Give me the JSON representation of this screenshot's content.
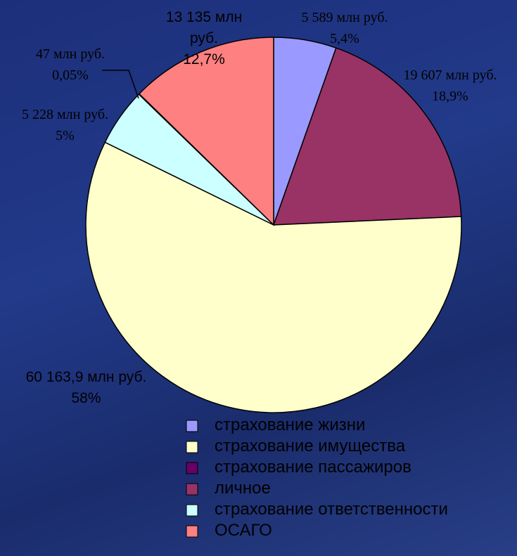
{
  "chart_data": {
    "type": "pie",
    "categories": [
      "страхование жизни",
      "личное",
      "страхование имущества",
      "страхование ответственности",
      "страхование пассажиров",
      "ОСАГО"
    ],
    "values": [
      5.4,
      18.9,
      58,
      5,
      0.05,
      12.7
    ],
    "value_labels": [
      "5,4%",
      "18,9%",
      "58%",
      "5%",
      "0,05%",
      "12,7%"
    ],
    "amount_labels": [
      "5 589 млн руб.",
      "19 607 млн руб.",
      "60 163,9 млн руб.",
      "5 228 млн руб.",
      "47 млн руб.",
      "13 135 млн руб."
    ],
    "colors": [
      "#9999ff",
      "#993366",
      "#ffffcc",
      "#ccffff",
      "#660066",
      "#ff8080"
    ],
    "legend_order": [
      0,
      2,
      4,
      1,
      3,
      5
    ]
  }
}
